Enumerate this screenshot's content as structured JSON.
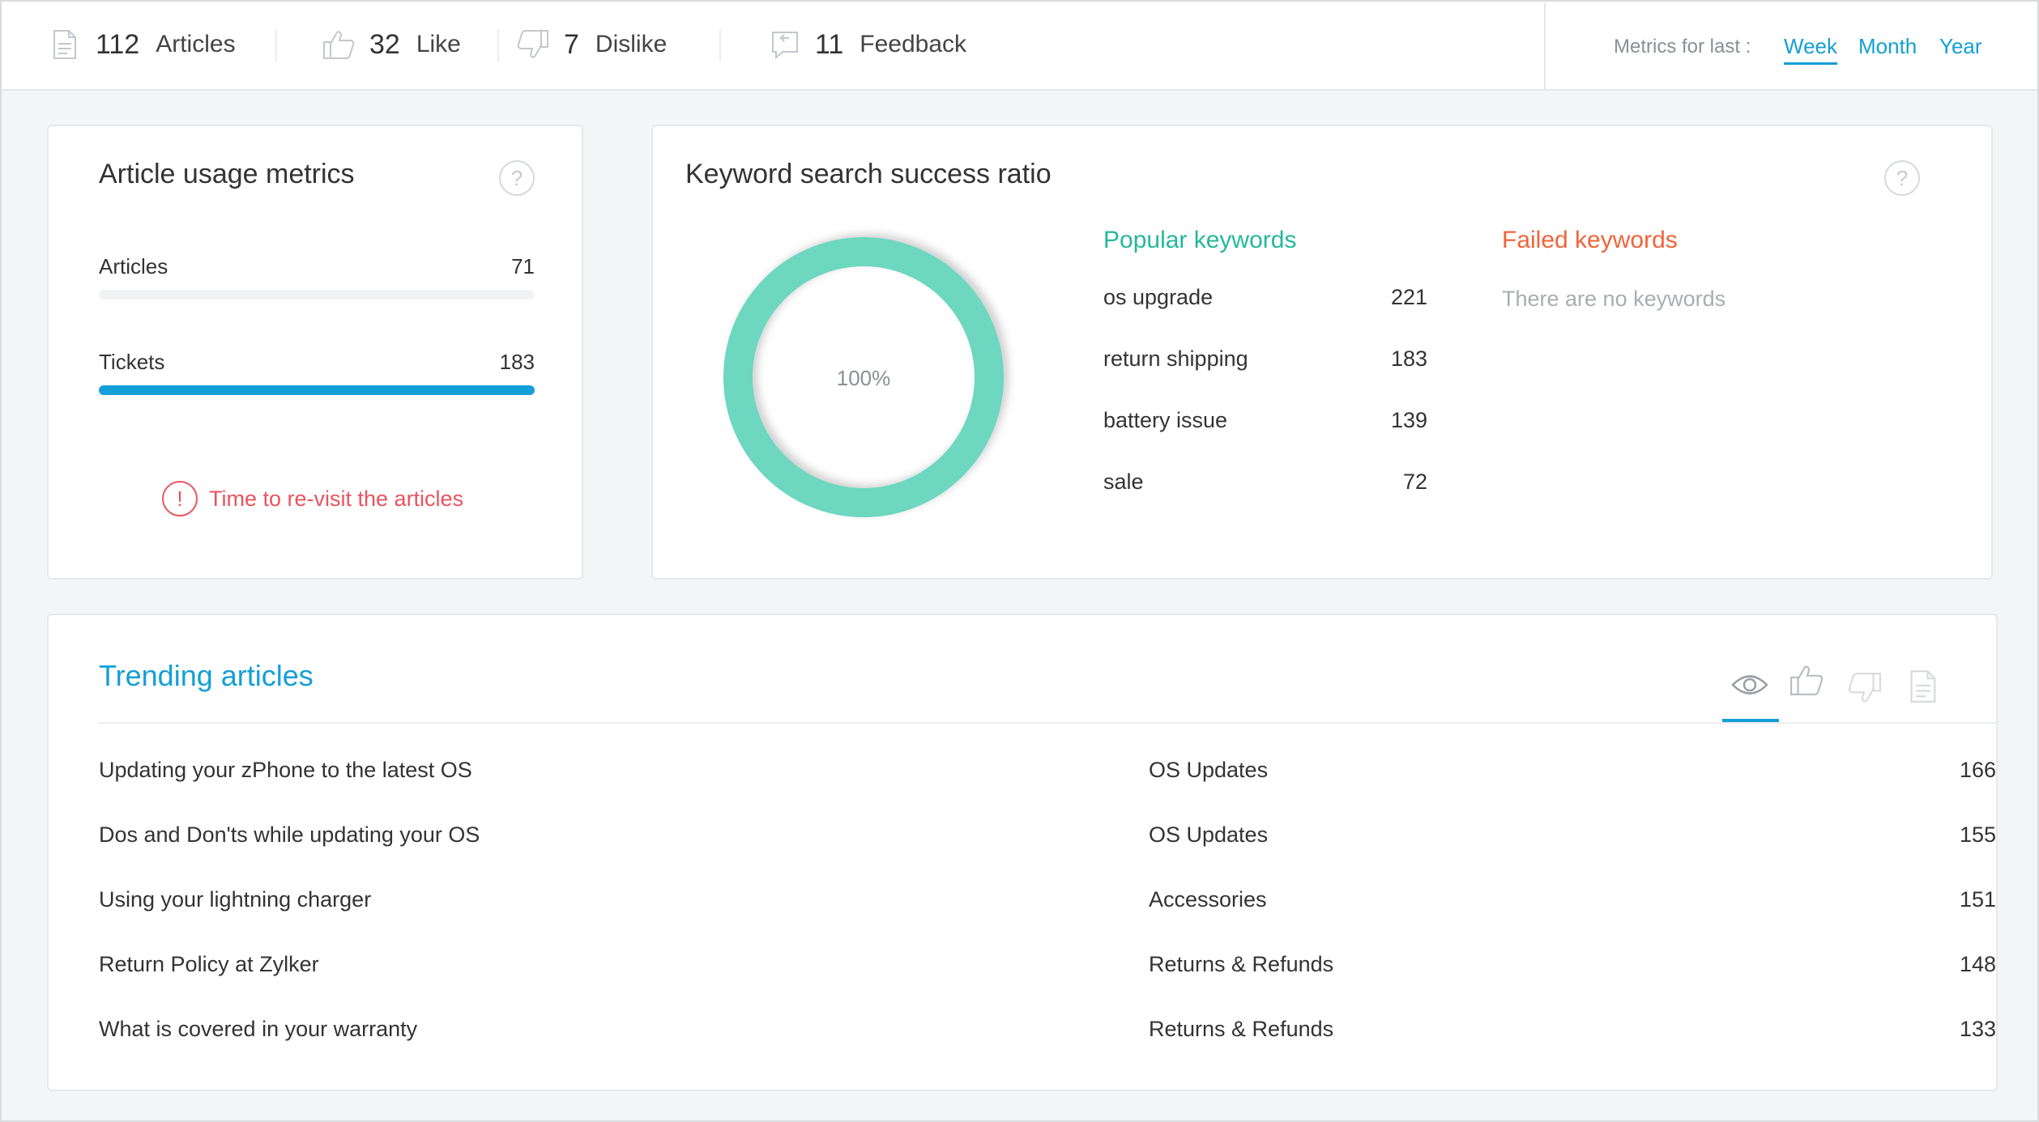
{
  "topbar": {
    "stats": [
      {
        "icon": "document-icon",
        "count": "112",
        "label": "Articles"
      },
      {
        "icon": "thumbs-up-icon",
        "count": "32",
        "label": "Like"
      },
      {
        "icon": "thumbs-down-icon",
        "count": "7",
        "label": "Dislike"
      },
      {
        "icon": "feedback-icon",
        "count": "11",
        "label": "Feedback"
      }
    ],
    "metrics_for": {
      "label": "Metrics for last :",
      "options": [
        "Week",
        "Month",
        "Year"
      ],
      "selected": "Week"
    }
  },
  "usage": {
    "title": "Article usage metrics",
    "help": "?",
    "rows": [
      {
        "label": "Articles",
        "value": "71",
        "fill": 0
      },
      {
        "label": "Tickets",
        "value": "183",
        "fill": 1
      }
    ],
    "alert": {
      "icon": "!",
      "text": "Time to re-visit the articles"
    }
  },
  "keywords": {
    "title": "Keyword search success ratio",
    "help": "?",
    "ratio": "100%",
    "ratio_value": 1.0,
    "ring_color": "#6dd7c0",
    "popular_title": "Popular keywords",
    "popular_color": "#25b89a",
    "popular": [
      {
        "keyword": "os upgrade",
        "count": "221"
      },
      {
        "keyword": "return shipping",
        "count": "183"
      },
      {
        "keyword": "battery issue",
        "count": "139"
      },
      {
        "keyword": "sale",
        "count": "72"
      }
    ],
    "failed_title": "Failed keywords",
    "failed_color": "#f0643a",
    "failed_empty": "There are no keywords"
  },
  "trending": {
    "title": "Trending articles",
    "tabs": [
      "eye-icon",
      "thumbs-up-icon",
      "thumbs-down-icon",
      "document-icon"
    ],
    "active_tab": "eye-icon",
    "rows": [
      {
        "title": "Updating your zPhone to the latest OS",
        "category": "OS Updates",
        "count": "166"
      },
      {
        "title": "Dos and Don'ts while updating your OS",
        "category": "OS Updates",
        "count": "155"
      },
      {
        "title": "Using your lightning charger",
        "category": "Accessories",
        "count": "151"
      },
      {
        "title": "Return Policy at Zylker",
        "category": "Returns & Refunds",
        "count": "148"
      },
      {
        "title": "What is covered in your warranty",
        "category": "Returns & Refunds",
        "count": "133"
      }
    ]
  }
}
